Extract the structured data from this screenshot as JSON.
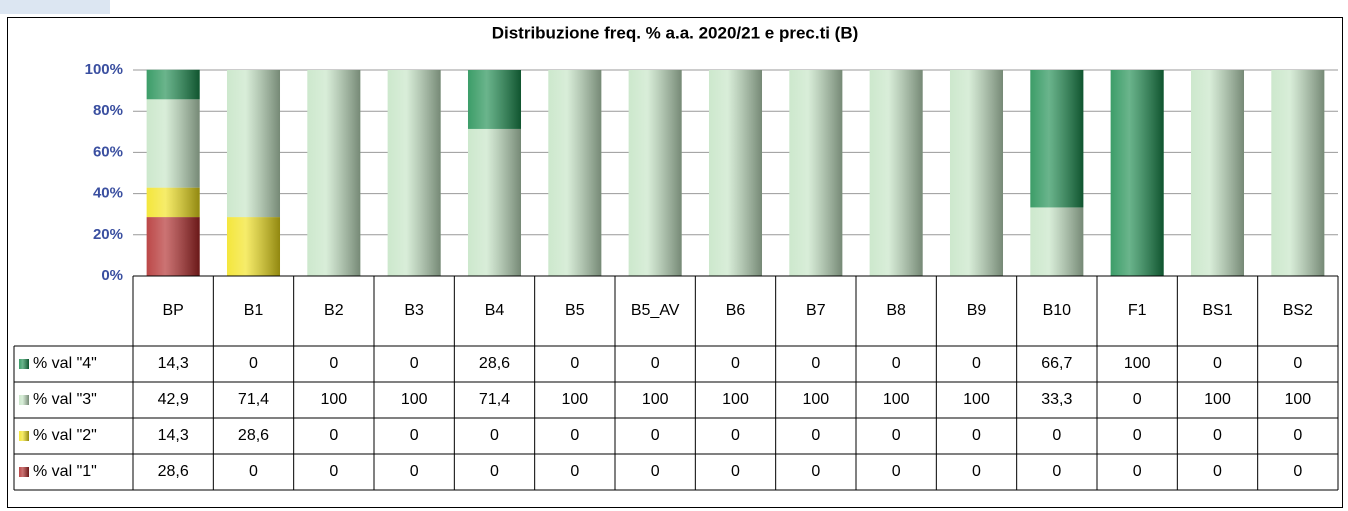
{
  "chart_data": {
    "type": "bar",
    "stacked": true,
    "title": "Distribuzione freq. % a.a. 2020/21 e prec.ti (B)",
    "categories": [
      "BP",
      "B1",
      "B2",
      "B3",
      "B4",
      "B5",
      "B5_AV",
      "B6",
      "B7",
      "B8",
      "B9",
      "B10",
      "F1",
      "BS1",
      "BS2"
    ],
    "series": [
      {
        "name": "% val \"4\"",
        "color": "#1a8c4e",
        "values": [
          14.3,
          0,
          0,
          0,
          28.6,
          0,
          0,
          0,
          0,
          0,
          0,
          66.7,
          100,
          0,
          0
        ],
        "value_labels": [
          "14,3",
          "0",
          "0",
          "0",
          "28,6",
          "0",
          "0",
          "0",
          "0",
          "0",
          "0",
          "66,7",
          "100",
          "0",
          "0"
        ]
      },
      {
        "name": "% val \"3\"",
        "color": "#c4e4c4",
        "values": [
          42.9,
          71.4,
          100,
          100,
          71.4,
          100,
          100,
          100,
          100,
          100,
          100,
          33.3,
          0,
          100,
          100
        ],
        "value_labels": [
          "42,9",
          "71,4",
          "100",
          "100",
          "71,4",
          "100",
          "100",
          "100",
          "100",
          "100",
          "100",
          "33,3",
          "0",
          "100",
          "100"
        ]
      },
      {
        "name": "% val \"2\"",
        "color": "#f2e21a",
        "values": [
          14.3,
          28.6,
          0,
          0,
          0,
          0,
          0,
          0,
          0,
          0,
          0,
          0,
          0,
          0,
          0
        ],
        "value_labels": [
          "14,3",
          "28,6",
          "0",
          "0",
          "0",
          "0",
          "0",
          "0",
          "0",
          "0",
          "0",
          "0",
          "0",
          "0",
          "0"
        ]
      },
      {
        "name": "% val \"1\"",
        "color": "#b02828",
        "values": [
          28.6,
          0,
          0,
          0,
          0,
          0,
          0,
          0,
          0,
          0,
          0,
          0,
          0,
          0,
          0
        ],
        "value_labels": [
          "28,6",
          "0",
          "0",
          "0",
          "0",
          "0",
          "0",
          "0",
          "0",
          "0",
          "0",
          "0",
          "0",
          "0",
          "0"
        ]
      }
    ],
    "ylim": [
      0,
      100
    ],
    "yticks": [
      {
        "value": 0,
        "label": "0%"
      },
      {
        "value": 20,
        "label": "20%"
      },
      {
        "value": 40,
        "label": "40%"
      },
      {
        "value": 60,
        "label": "60%"
      },
      {
        "value": 80,
        "label": "80%"
      },
      {
        "value": 100,
        "label": "100%"
      }
    ],
    "grid": true
  }
}
